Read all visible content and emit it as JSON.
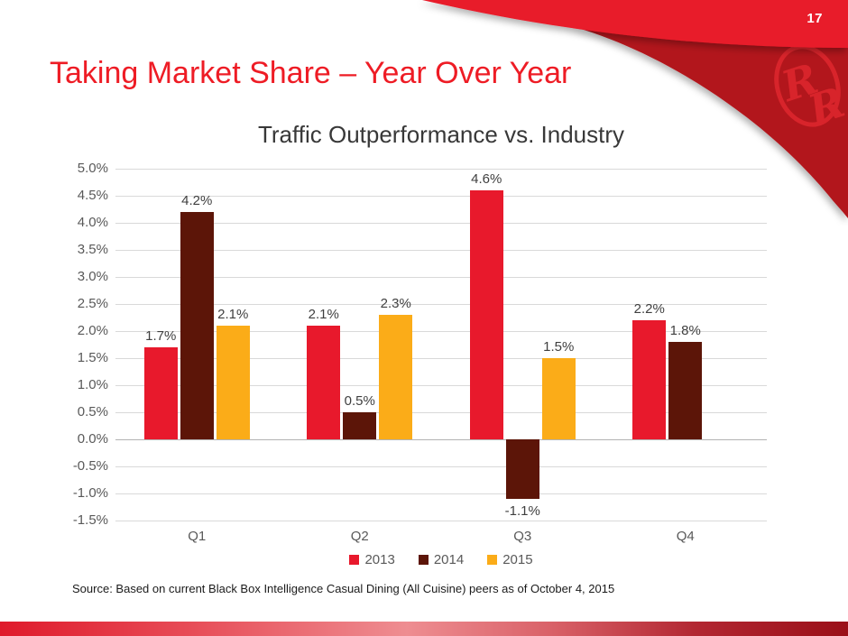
{
  "slide": {
    "page_number": "17",
    "title": "Taking Market Share – Year Over Year",
    "source": "Source: Based on current Black Box Intelligence Casual Dining (All Cuisine) peers as of October 4, 2015",
    "logo_name": "red-robin-rr-logo"
  },
  "colors": {
    "title_red": "#ee1c25",
    "swoosh_bright_red": "#e81b2b",
    "swoosh_dark_red": "#b2161d",
    "logo_red": "#d8242b",
    "gridline": "#d9d9d9",
    "axis_text": "#595959",
    "data_label_text": "#3f3f3f"
  },
  "chart_data": {
    "type": "bar",
    "title": "Traffic Outperformance vs. Industry",
    "categories": [
      "Q1",
      "Q2",
      "Q3",
      "Q4"
    ],
    "series": [
      {
        "name": "2013",
        "color": "#e8192c",
        "values": [
          1.7,
          2.1,
          4.6,
          2.2
        ]
      },
      {
        "name": "2014",
        "color": "#5c1508",
        "values": [
          4.2,
          0.5,
          -1.1,
          1.8
        ]
      },
      {
        "name": "2015",
        "color": "#fbac18",
        "values": [
          2.1,
          2.3,
          1.5,
          null
        ]
      }
    ],
    "ylabel": "",
    "xlabel": "",
    "ylim": [
      -1.5,
      5.0
    ],
    "ytick_step": 0.5,
    "ytick_format": "0.0%",
    "grid": true,
    "data_labels": true,
    "legend_position": "bottom"
  }
}
